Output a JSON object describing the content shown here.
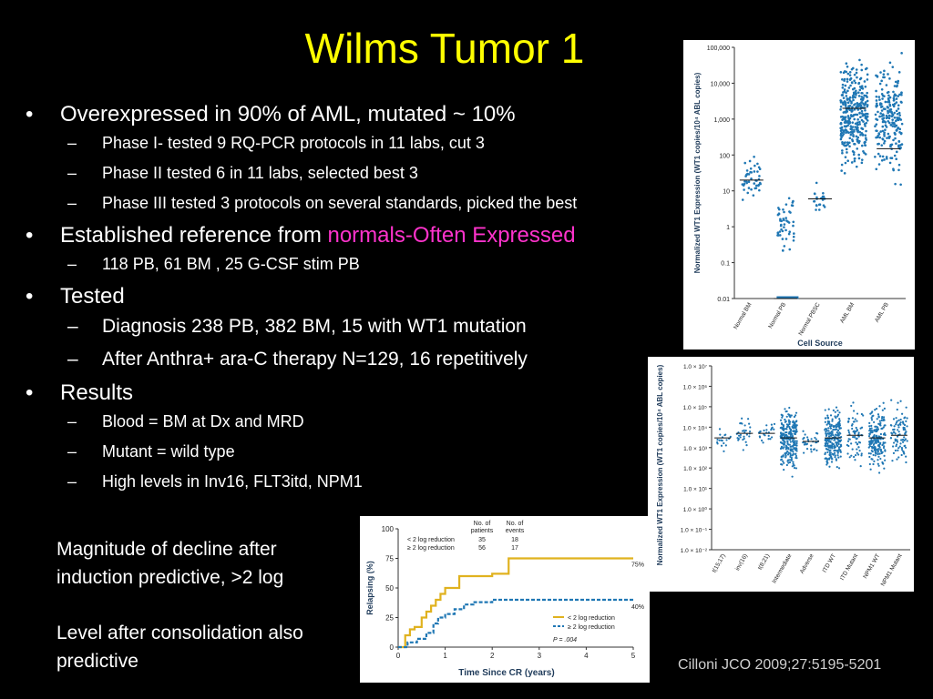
{
  "slide": {
    "title": "Wilms Tumor 1",
    "bullets": [
      {
        "text": "Overexpressed in 90% of AML, mutated ~ 10%",
        "sub": [
          "Phase I- tested 9 RQ-PCR protocols in 11 labs, cut 3",
          "Phase II tested 6  in 11 labs, selected best 3",
          "Phase III tested 3 protocols on several standards, picked  the best"
        ]
      },
      {
        "text_before": "Established reference from ",
        "text_highlight": "normals-Often Expressed",
        "sub": [
          "118 PB, 61 BM , 25 G-CSF stim PB"
        ]
      },
      {
        "text": "Tested",
        "sub": [
          "Diagnosis 238 PB, 382 BM, 15 with WT1 mutation",
          "After Anthra+ ara-C therapy N=129, 16 repetitively"
        ]
      },
      {
        "text": "Results",
        "sub": [
          "Blood = BM at Dx and MRD",
          "Mutant = wild type",
          "High levels in Inv16, FLT3itd, NPM1"
        ]
      }
    ],
    "note1": [
      "Magnitude of decline after",
      "induction predictive, >2 log"
    ],
    "note2": [
      "Level after consolidation also",
      "predictive"
    ],
    "citation": "Cilloni JCO 2009;27:5195-5201",
    "colors": {
      "title": "#ffff00",
      "highlight": "#ff33cc",
      "background": "#000000",
      "dots": "#1f77b4",
      "gold": "#e0b21f"
    }
  },
  "chart_data": [
    {
      "type": "scatter",
      "ylabel": "Normalized WT1 Expression (WT1 copies/10⁴ ABL copies)",
      "xlabel": "Cell Source",
      "ytick_labels": [
        "100,000",
        "10,000",
        "1,000",
        "100",
        "10",
        "1",
        "0.1",
        "0.01"
      ],
      "yscale": "log",
      "ylim": [
        0.01,
        100000
      ],
      "categories": [
        "Normal BM",
        "Normal PB",
        "Normal PBSC",
        "AML BM",
        "AML PB"
      ],
      "medians": [
        20,
        0.01,
        6,
        2000,
        150
      ]
    },
    {
      "type": "scatter",
      "ylabel": "Normalized WT1 Expression (WT1 copies/10⁴ ABL copies)",
      "ytick_labels": [
        "1.0 × 10⁷",
        "1.0 × 10⁶",
        "1.0 × 10⁵",
        "1.0 × 10⁴",
        "1.0 × 10³",
        "1.0 × 10²",
        "1.0 × 10¹",
        "1.0 × 10⁰",
        "1.0 × 10⁻¹",
        "1.0 × 10⁻²"
      ],
      "yscale": "log",
      "ylim": [
        0.01,
        10000000
      ],
      "categories": [
        "t(15;17)",
        "inv(16)",
        "t(8;21)",
        "Intermediate",
        "Adverse",
        "ITD WT",
        "ITD Mutant",
        "NPM1 WT",
        "NPM1 Mutant"
      ],
      "medians": [
        3000,
        5000,
        5000,
        3000,
        2000,
        3000,
        4000,
        3000,
        4000
      ]
    },
    {
      "type": "line",
      "xlabel": "Time Since CR (years)",
      "ylabel": "Relapsing (%)",
      "xlim": [
        0,
        5
      ],
      "ylim": [
        0,
        100
      ],
      "xtick_labels": [
        "0",
        "1",
        "2",
        "3",
        "4",
        "5"
      ],
      "ytick_labels": [
        "0",
        "25",
        "50",
        "75",
        "100"
      ],
      "table_headers": [
        "No. of patients",
        "No. of events"
      ],
      "table_rows": [
        {
          "label": "< 2 log reduction",
          "patients": "35",
          "events": "18"
        },
        {
          "label": "≥ 2 log reduction",
          "patients": "56",
          "events": "17"
        }
      ],
      "series": [
        {
          "name": "< 2 log reduction",
          "end_label": "75%",
          "x": [
            0,
            0.15,
            0.25,
            0.35,
            0.5,
            0.6,
            0.7,
            0.8,
            0.9,
            1.0,
            1.3,
            2.0,
            2.35,
            5.0
          ],
          "y": [
            0,
            10,
            15,
            17,
            25,
            30,
            35,
            40,
            45,
            50,
            60,
            62,
            75,
            75
          ]
        },
        {
          "name": "≥ 2 log reduction",
          "end_label": "40%",
          "x": [
            0,
            0.2,
            0.4,
            0.6,
            0.75,
            0.85,
            1.0,
            1.2,
            1.4,
            1.6,
            2.0,
            2.5,
            5.0
          ],
          "y": [
            0,
            4,
            7,
            12,
            20,
            25,
            28,
            32,
            36,
            38,
            40,
            40,
            40
          ]
        }
      ],
      "p_value": "P = .004"
    }
  ]
}
